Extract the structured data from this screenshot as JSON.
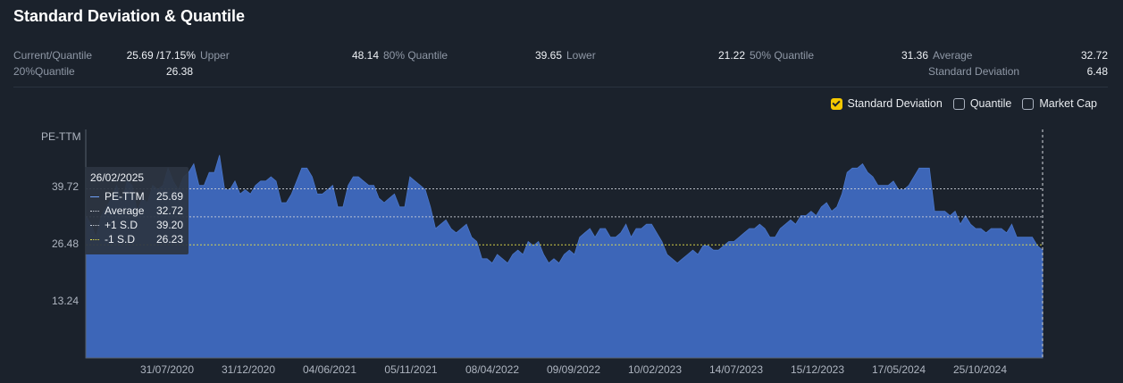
{
  "title": "Standard Deviation & Quantile",
  "stats": [
    {
      "label": "Current/Quantile",
      "value": "25.69 /17.15%"
    },
    {
      "label": "Upper",
      "value": "48.14"
    },
    {
      "label": "80% Quantile",
      "value": "39.65"
    },
    {
      "label": "Lower",
      "value": "21.22"
    },
    {
      "label": "50% Quantile",
      "value": "31.36"
    },
    {
      "label": "Average",
      "value": "32.72"
    },
    {
      "label": "20%Quantile",
      "value": "26.38"
    },
    {
      "label": "Standard Deviation",
      "value": "6.48"
    }
  ],
  "legend": [
    {
      "label": "Standard Deviation",
      "checked": true
    },
    {
      "label": "Quantile",
      "checked": false
    },
    {
      "label": "Market Cap",
      "checked": false
    }
  ],
  "tooltip": {
    "date": "26/02/2025",
    "rows": [
      {
        "label": "PE-TTM",
        "value": "25.69",
        "color": "#6f9ff5",
        "style": "solid"
      },
      {
        "label": "Average",
        "value": "32.72",
        "color": "#c9ced6",
        "style": "dotted"
      },
      {
        "label": "+1 S.D",
        "value": "39.20",
        "color": "#c9ced6",
        "style": "dotted"
      },
      {
        "label": "-1 S.D",
        "value": "26.23",
        "color": "#e6e04a",
        "style": "dotted"
      }
    ]
  },
  "chart_data": {
    "type": "area",
    "ylabel": "PE-TTM",
    "ylim": [
      0,
      52.96
    ],
    "yticks": [
      "39.72",
      "26.48",
      "13.24"
    ],
    "ytick_values": [
      39.72,
      26.48,
      13.24
    ],
    "xticks": [
      "31/07/2020",
      "31/12/2020",
      "04/06/2021",
      "05/11/2021",
      "08/04/2022",
      "09/09/2022",
      "10/02/2023",
      "14/07/2023",
      "15/12/2023",
      "17/05/2024",
      "25/10/2024"
    ],
    "x_range": [
      "02/2020",
      "02/2025"
    ],
    "reference_lines": [
      {
        "name": "Average",
        "value": 32.72,
        "color": "#c9ced6"
      },
      {
        "name": "+1 S.D",
        "value": 39.2,
        "color": "#c9ced6"
      },
      {
        "name": "-1 S.D",
        "value": 26.23,
        "color": "#e6e04a"
      }
    ],
    "series": [
      {
        "name": "PE-TTM",
        "color": "#3d66b8",
        "values": [
          33,
          31,
          28,
          33,
          35,
          37,
          40,
          36,
          41,
          40,
          34,
          37,
          36,
          40,
          39,
          40,
          44,
          41,
          39,
          42,
          43,
          45,
          40,
          40,
          43,
          43,
          47,
          39,
          39,
          41,
          38,
          39,
          38,
          40,
          41,
          41,
          42,
          41,
          36,
          36,
          38,
          41,
          44,
          44,
          42,
          38,
          38,
          39,
          40,
          35,
          35,
          40,
          42,
          42,
          41,
          40,
          40,
          37,
          36,
          37,
          38,
          35,
          35,
          42,
          41,
          40,
          39,
          35,
          30,
          31,
          32,
          30,
          29,
          30,
          31,
          28,
          27,
          23,
          23,
          22,
          24,
          23,
          22,
          24,
          25,
          24,
          27,
          26,
          27,
          24,
          22,
          23,
          22,
          24,
          25,
          24,
          28,
          29,
          30,
          28,
          30,
          30,
          28,
          28,
          29,
          31,
          28,
          30,
          30,
          31,
          31,
          29,
          27,
          24,
          23,
          22,
          23,
          24,
          25,
          24,
          26,
          26,
          25,
          25,
          26,
          27,
          27,
          28,
          29,
          30,
          30,
          31,
          30,
          28,
          28,
          30,
          31,
          32,
          31,
          33,
          33,
          34,
          33,
          35,
          36,
          34,
          35,
          38,
          43,
          44,
          44,
          45,
          43,
          42,
          40,
          40,
          40,
          41,
          39,
          39,
          40,
          42,
          44,
          44,
          44,
          34,
          34,
          34,
          33,
          34,
          31,
          33,
          31,
          30,
          30,
          29,
          30,
          30,
          30,
          29,
          31,
          28,
          28,
          28,
          28,
          26,
          25
        ]
      }
    ]
  }
}
